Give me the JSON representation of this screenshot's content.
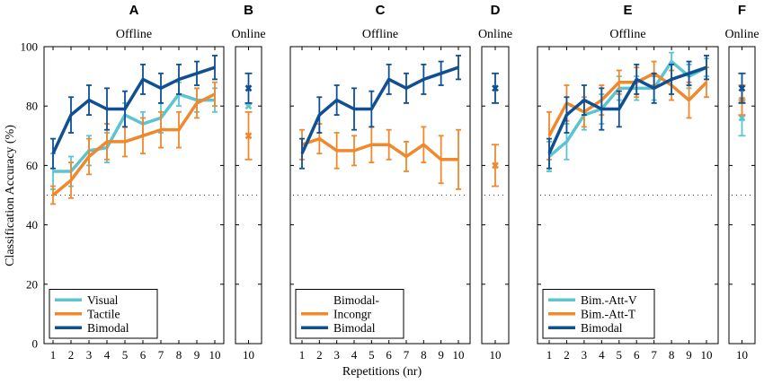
{
  "colors": {
    "Visual": "#5bc4cf",
    "Tactile": "#f0882c",
    "Bimodal": "#0f4f93",
    "Bimodal-Incongr": "#f0882c",
    "Bim.-Att-V": "#5bc4cf",
    "Bim.-Att-T": "#f0882c"
  },
  "chart_data": {
    "type": "line",
    "ylabel": "Classification Accuracy (%)",
    "xlabel": "Repetitions (nr)",
    "ylim": [
      0,
      100
    ],
    "yticks": [
      0,
      20,
      40,
      60,
      80,
      100
    ],
    "chance_level": 50,
    "x": [
      1,
      2,
      3,
      4,
      5,
      6,
      7,
      8,
      9,
      10
    ],
    "online_x": 10,
    "panels": [
      {
        "letter": "A",
        "title": "Offline",
        "kind": "offline",
        "legend_position": "bottom-left",
        "series": [
          {
            "name": "Visual",
            "values": [
              58,
              58,
              65,
              66,
              77,
              74,
              76,
              84,
              82,
              82
            ],
            "err": [
              6,
              5,
              5,
              5,
              4,
              4,
              5,
              4,
              4,
              4
            ]
          },
          {
            "name": "Tactile",
            "values": [
              50,
              55,
              63,
              68,
              68,
              70,
              72,
              72,
              81,
              84
            ],
            "err": [
              3,
              6,
              6,
              6,
              5,
              6,
              6,
              6,
              5,
              4
            ]
          },
          {
            "name": "Bimodal",
            "values": [
              64,
              77,
              82,
              79,
              79,
              89,
              86,
              89,
              91,
              93
            ],
            "err": [
              5,
              6,
              5,
              7,
              6,
              5,
              5,
              5,
              4,
              4
            ]
          }
        ]
      },
      {
        "letter": "B",
        "title": "Online",
        "kind": "online",
        "series": [
          {
            "name": "Visual",
            "values": [
              80
            ],
            "err": [
              0
            ]
          },
          {
            "name": "Tactile",
            "values": [
              70
            ],
            "err": [
              8
            ]
          },
          {
            "name": "Bimodal",
            "values": [
              86
            ],
            "err": [
              5
            ]
          }
        ]
      },
      {
        "letter": "C",
        "title": "Offline",
        "kind": "offline",
        "legend_position": "bottom-left",
        "series": [
          {
            "name": "Bimodal-Incongr",
            "legend": "Bimodal-\nIncongr",
            "values": [
              67,
              69,
              65,
              65,
              67,
              67,
              63,
              67,
              62,
              62
            ],
            "err": [
              5,
              5,
              6,
              5,
              6,
              5,
              5,
              6,
              8,
              10
            ]
          },
          {
            "name": "Bimodal",
            "values": [
              64,
              77,
              82,
              79,
              79,
              89,
              86,
              89,
              91,
              93
            ],
            "err": [
              5,
              6,
              5,
              7,
              6,
              5,
              5,
              5,
              4,
              4
            ]
          }
        ]
      },
      {
        "letter": "D",
        "title": "Online",
        "kind": "online",
        "series": [
          {
            "name": "Bimodal-Incongr",
            "values": [
              60
            ],
            "err": [
              7
            ]
          },
          {
            "name": "Bimodal",
            "values": [
              86
            ],
            "err": [
              5
            ]
          }
        ]
      },
      {
        "letter": "E",
        "title": "Offline",
        "kind": "offline",
        "legend_position": "bottom-left",
        "series": [
          {
            "name": "Bim.-Att-V",
            "values": [
              63,
              68,
              77,
              79,
              86,
              86,
              86,
              95,
              90,
              93
            ],
            "err": [
              5,
              6,
              5,
              5,
              4,
              4,
              4,
              3,
              4,
              3
            ]
          },
          {
            "name": "Bim.-Att-T",
            "values": [
              70,
              81,
              78,
              82,
              88,
              88,
              91,
              87,
              82,
              88
            ],
            "err": [
              8,
              6,
              5,
              5,
              4,
              5,
              4,
              5,
              6,
              5
            ]
          },
          {
            "name": "Bimodal",
            "values": [
              64,
              77,
              82,
              79,
              79,
              89,
              86,
              89,
              91,
              93
            ],
            "err": [
              5,
              6,
              5,
              7,
              6,
              5,
              5,
              5,
              4,
              4
            ]
          }
        ]
      },
      {
        "letter": "F",
        "title": "Online",
        "kind": "online",
        "series": [
          {
            "name": "Bim.-Att-V",
            "values": [
              76
            ],
            "err": [
              6
            ]
          },
          {
            "name": "Bim.-Att-T",
            "values": [
              82
            ],
            "err": [
              5
            ]
          },
          {
            "name": "Bimodal",
            "values": [
              86
            ],
            "err": [
              5
            ]
          }
        ]
      }
    ]
  }
}
